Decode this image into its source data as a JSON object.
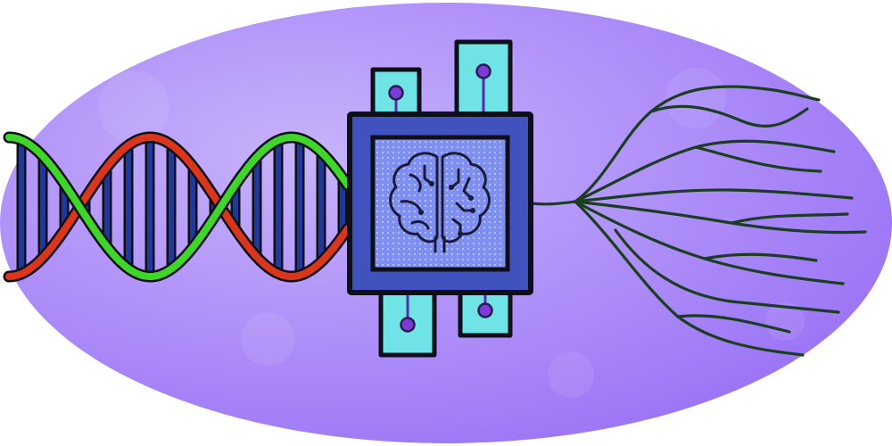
{
  "illustration": {
    "subject": "dna-to-brain-chip-to-neural-branches",
    "elements": [
      "dna-double-helix",
      "brain-chip",
      "neural-branches"
    ]
  },
  "colors": {
    "background_inner": "#c7b3fb",
    "background_outer": "#9a72f6",
    "helix_strand_a": "#d9361c",
    "helix_strand_b": "#3fd62a",
    "base_pairs": "#1e3a96",
    "chip_body": "#3f52bd",
    "chip_screen": "#7f8ff0",
    "chip_pins": "#6fe3e6",
    "pin_dots": "#7a3bd6",
    "brain_stroke": "#1a1a3a",
    "branches": "#1b3d22",
    "outline": "#0f0f1a"
  },
  "icons": {
    "center": "brain-icon",
    "left": "dna-helix-icon",
    "right": "branch-icon"
  }
}
